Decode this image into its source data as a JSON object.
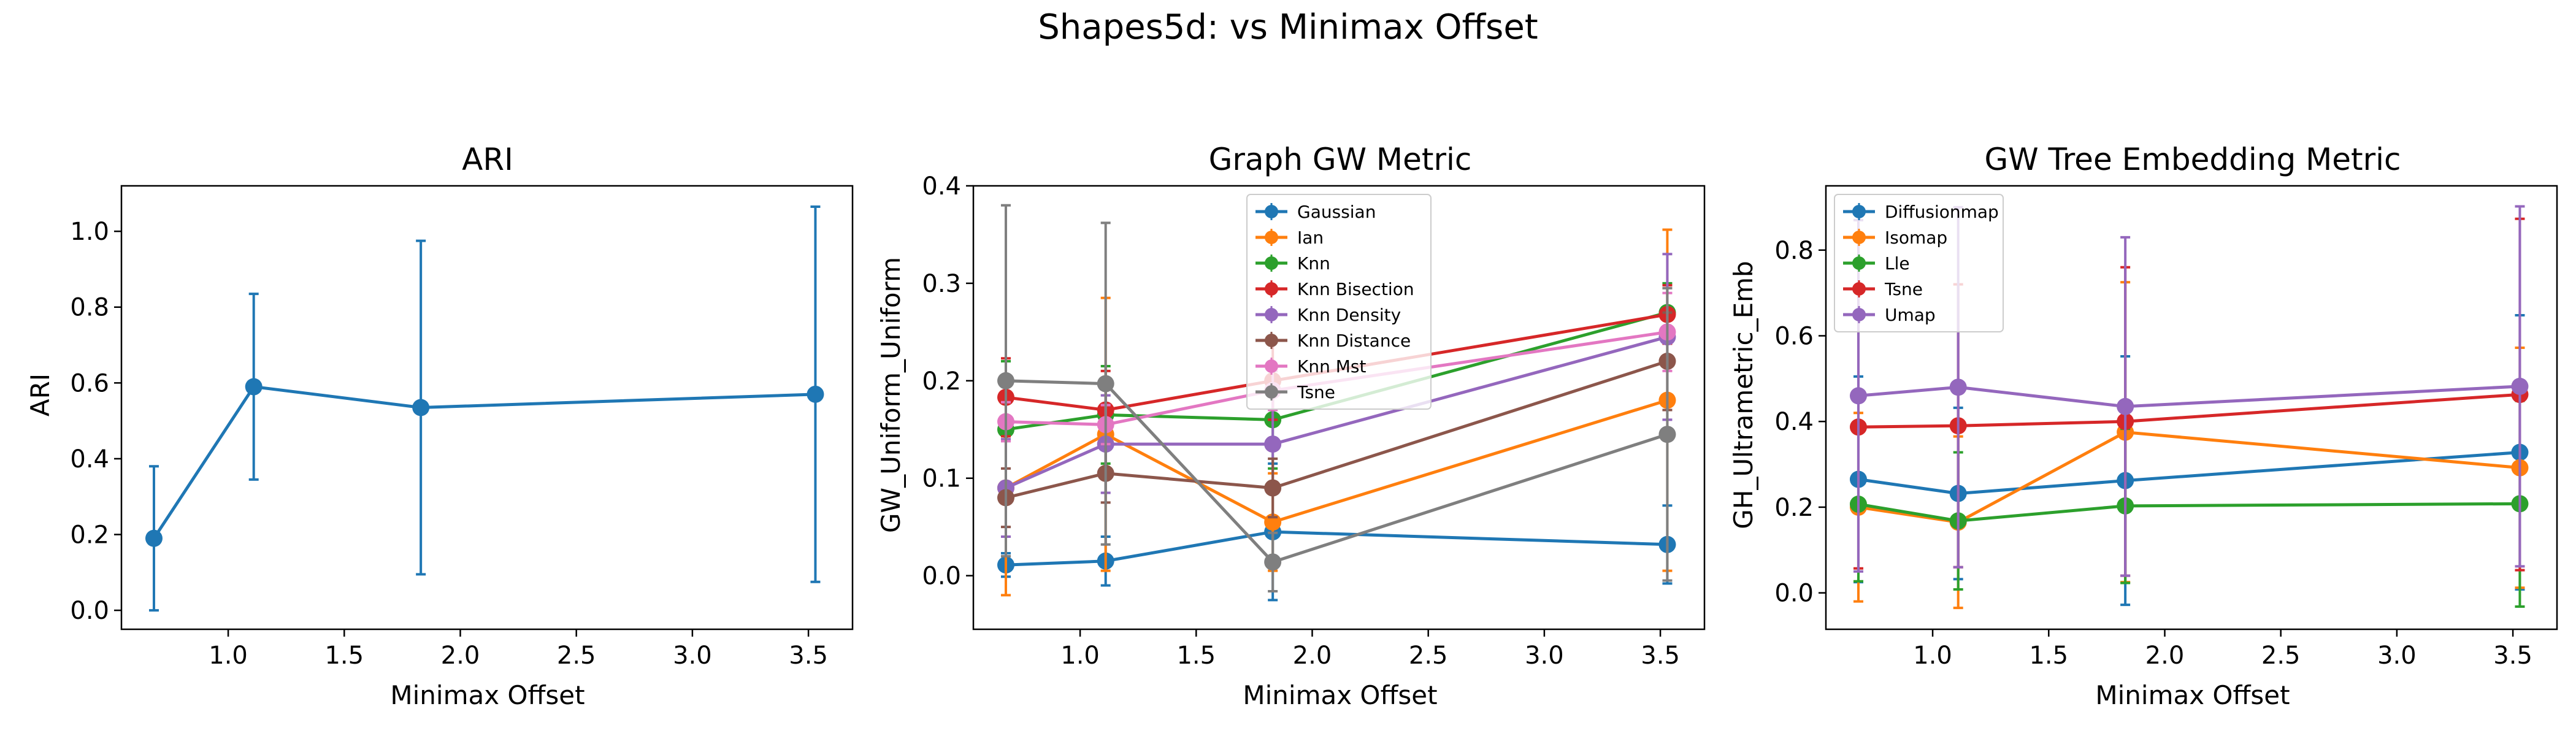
{
  "suptitle": "Shapes5d: vs Minimax Offset",
  "colors": [
    "#1f77b4",
    "#ff7f0e",
    "#2ca02c",
    "#d62728",
    "#9467bd",
    "#8c564b",
    "#e377c2",
    "#7f7f7f"
  ],
  "chart_data": [
    {
      "type": "line",
      "title": "ARI",
      "xlabel": "Minimax Offset",
      "ylabel": "ARI",
      "xlim": [
        0.54,
        3.69
      ],
      "ylim": [
        -0.05,
        1.12
      ],
      "xticks": [
        "1.0",
        "1.5",
        "2.0",
        "2.5",
        "3.0",
        "3.5"
      ],
      "yticks": [
        "0.0",
        "0.2",
        "0.4",
        "0.6",
        "0.8",
        "1.0"
      ],
      "x": [
        0.68,
        1.11,
        1.83,
        3.53
      ],
      "legend": "none",
      "series": [
        {
          "values": [
            0.19,
            0.59,
            0.535,
            0.57
          ],
          "err": [
            0.19,
            0.245,
            0.44,
            0.495
          ]
        }
      ]
    },
    {
      "type": "line",
      "title": "Graph GW Metric",
      "xlabel": "Minimax Offset",
      "ylabel": "GW_Uniform_Uniform",
      "xlim": [
        0.54,
        3.69
      ],
      "ylim": [
        -0.055,
        0.4
      ],
      "xticks": [
        "1.0",
        "1.5",
        "2.0",
        "2.5",
        "3.0",
        "3.5"
      ],
      "yticks": [
        "0.0",
        "0.1",
        "0.2",
        "0.3",
        "0.4"
      ],
      "x": [
        0.68,
        1.11,
        1.83,
        3.53
      ],
      "legend": "upper-center",
      "series": [
        {
          "name": "Gaussian",
          "values": [
            0.011,
            0.015,
            0.045,
            0.032
          ],
          "err": [
            0.012,
            0.025,
            0.07,
            0.04
          ]
        },
        {
          "name": "Ian",
          "values": [
            0.09,
            0.145,
            0.055,
            0.18
          ],
          "err": [
            0.11,
            0.14,
            0.05,
            0.175
          ]
        },
        {
          "name": "Knn",
          "values": [
            0.15,
            0.165,
            0.16,
            0.27
          ],
          "err": [
            0.07,
            0.05,
            0.05,
            0.03
          ]
        },
        {
          "name": "Knn Bisection",
          "values": [
            0.183,
            0.17,
            0.2,
            0.268
          ],
          "err": [
            0.04,
            0.04,
            0.04,
            0.03
          ]
        },
        {
          "name": "Knn Density",
          "values": [
            0.09,
            0.135,
            0.135,
            0.245
          ],
          "err": [
            0.05,
            0.05,
            0.05,
            0.085
          ]
        },
        {
          "name": "Knn Distance",
          "values": [
            0.08,
            0.105,
            0.09,
            0.22
          ],
          "err": [
            0.03,
            0.03,
            0.03,
            0.05
          ]
        },
        {
          "name": "Knn Mst",
          "values": [
            0.158,
            0.155,
            0.19,
            0.25
          ],
          "err": [
            0.02,
            0.02,
            0.02,
            0.04
          ]
        },
        {
          "name": "Tsne",
          "values": [
            0.2,
            0.197,
            0.014,
            0.145
          ],
          "err": [
            0.18,
            0.165,
            0.03,
            0.15
          ]
        }
      ]
    },
    {
      "type": "line",
      "title": "GW Tree Embedding Metric",
      "xlabel": "Minimax Offset",
      "ylabel": "GH_Ultrametric_Emb",
      "xlim": [
        0.54,
        3.69
      ],
      "ylim": [
        -0.085,
        0.95
      ],
      "xticks": [
        "1.0",
        "1.5",
        "2.0",
        "2.5",
        "3.0",
        "3.5"
      ],
      "yticks": [
        "0.0",
        "0.2",
        "0.4",
        "0.6",
        "0.8"
      ],
      "x": [
        0.68,
        1.11,
        1.83,
        3.53
      ],
      "legend": "upper-left",
      "series": [
        {
          "name": "Diffusionmap",
          "values": [
            0.265,
            0.232,
            0.262,
            0.328
          ],
          "err": [
            0.24,
            0.2,
            0.29,
            0.32
          ]
        },
        {
          "name": "Isomap",
          "values": [
            0.2,
            0.165,
            0.375,
            0.292
          ],
          "err": [
            0.22,
            0.2,
            0.35,
            0.28
          ]
        },
        {
          "name": "Lle",
          "values": [
            0.207,
            0.168,
            0.203,
            0.208
          ],
          "err": [
            0.18,
            0.16,
            0.18,
            0.24
          ]
        },
        {
          "name": "Tsne",
          "values": [
            0.387,
            0.39,
            0.4,
            0.463
          ],
          "err": [
            0.33,
            0.33,
            0.36,
            0.41
          ]
        },
        {
          "name": "Umap",
          "values": [
            0.46,
            0.48,
            0.435,
            0.482
          ],
          "err": [
            0.41,
            0.42,
            0.395,
            0.42
          ]
        }
      ]
    }
  ]
}
